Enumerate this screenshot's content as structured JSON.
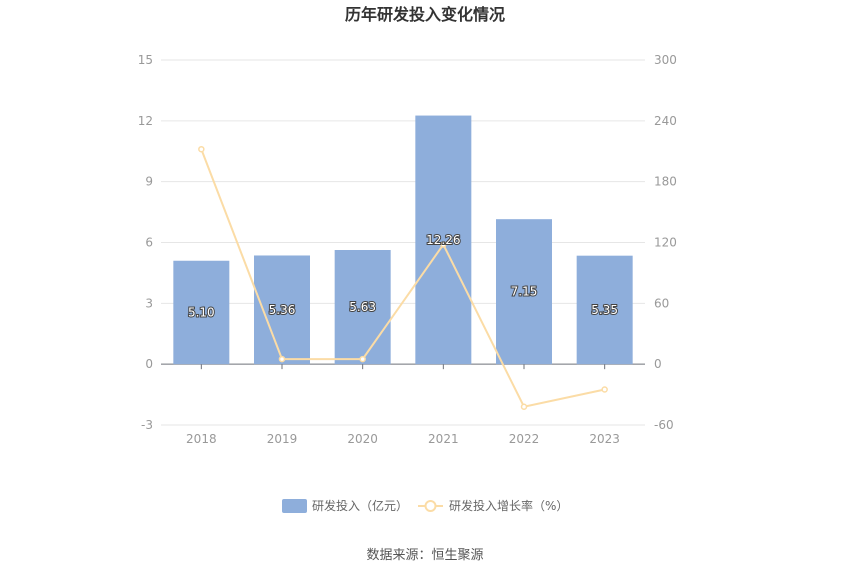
{
  "chart_data": {
    "type": "bar",
    "title": "历年研发投入变化情况",
    "categories": [
      "2018",
      "2019",
      "2020",
      "2021",
      "2022",
      "2023"
    ],
    "series": [
      {
        "name": "研发投入（亿元）",
        "type": "bar",
        "axis": "left",
        "color": "#8eaedb",
        "values": [
          5.1,
          5.36,
          5.63,
          12.26,
          7.15,
          5.35
        ],
        "labels": [
          "5.10",
          "5.36",
          "5.63",
          "12.26",
          "7.15",
          "5.35"
        ]
      },
      {
        "name": "研发投入增长率（%）",
        "type": "line",
        "axis": "right",
        "color": "#fbdca6",
        "values": [
          212,
          5,
          5,
          118,
          -42,
          -25
        ]
      }
    ],
    "y_left": {
      "min": -3,
      "max": 15,
      "ticks": [
        "-3",
        "0",
        "3",
        "6",
        "9",
        "12",
        "15"
      ]
    },
    "y_right": {
      "min": -60,
      "max": 300,
      "ticks": [
        "-60",
        "0",
        "60",
        "120",
        "180",
        "240",
        "300"
      ]
    },
    "grid": true,
    "legend_position": "bottom"
  },
  "source_text": "数据来源：恒生聚源"
}
